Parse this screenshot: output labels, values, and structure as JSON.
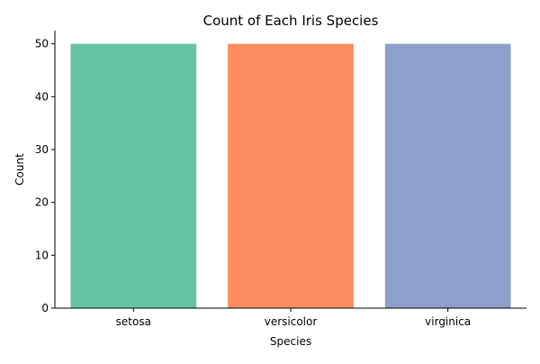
{
  "chart_data": {
    "type": "bar",
    "title": "Count of Each Iris Species",
    "xlabel": "Species",
    "ylabel": "Count",
    "categories": [
      "setosa",
      "versicolor",
      "virginica"
    ],
    "values": [
      50,
      50,
      50
    ],
    "colors": [
      "#66c2a5",
      "#fc8d62",
      "#8da0cb"
    ],
    "ylim": [
      0,
      52.5
    ],
    "yticks": [
      0,
      10,
      20,
      30,
      40,
      50
    ],
    "grid": false,
    "legend": "none"
  }
}
